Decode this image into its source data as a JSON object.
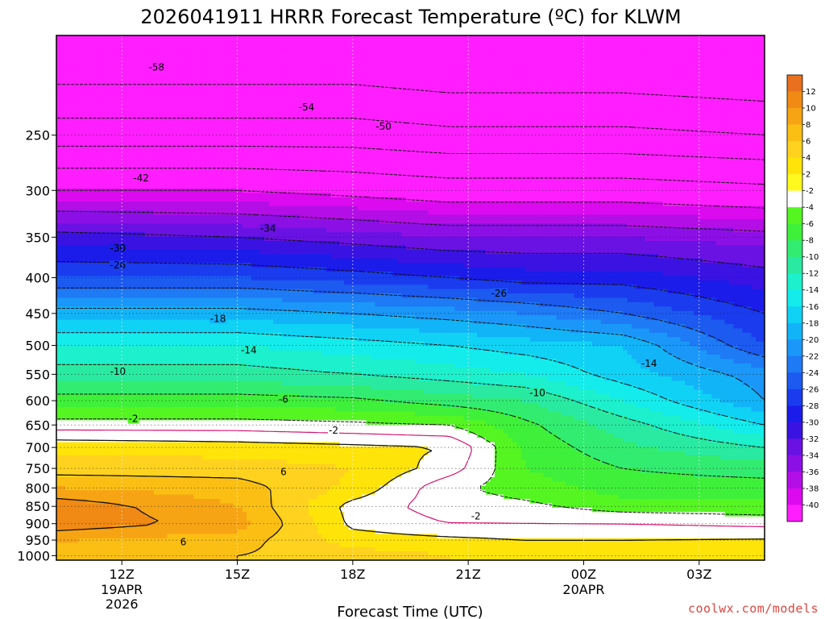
{
  "chart_data": {
    "type": "heatmap",
    "title": "2026041911 HRRR Forecast Temperature (ºC) for KLWM",
    "xlabel": "Forecast Time (UTC)",
    "ylabel": "",
    "units": "ºC",
    "y_axis": {
      "quantity": "pressure (hPa)",
      "reversed": true,
      "range": [
        1015,
        180
      ],
      "ticks": [
        250,
        300,
        350,
        400,
        450,
        500,
        550,
        600,
        650,
        700,
        750,
        800,
        850,
        900,
        950,
        1000
      ]
    },
    "x_axis": {
      "range_hours": [
        -1.7,
        16.7
      ],
      "ticks": [
        {
          "hour": 0,
          "label": "12Z",
          "sublabels": [
            "19APR",
            "2026"
          ]
        },
        {
          "hour": 3,
          "label": "15Z",
          "sublabels": []
        },
        {
          "hour": 6,
          "label": "18Z",
          "sublabels": []
        },
        {
          "hour": 9,
          "label": "21Z",
          "sublabels": []
        },
        {
          "hour": 12,
          "label": "00Z",
          "sublabels": [
            "20APR"
          ]
        },
        {
          "hour": 15,
          "label": "03Z",
          "sublabels": []
        }
      ]
    },
    "grid": true,
    "colorbar": {
      "position": "right",
      "labels": [
        "12",
        "10",
        "8",
        "6",
        "4",
        "2",
        "-2",
        "-4",
        "-6",
        "-8",
        "-10",
        "-12",
        "-14",
        "-16",
        "-18",
        "-20",
        "-22",
        "-24",
        "-26",
        "-28",
        "-30",
        "-32",
        "-34",
        "-36",
        "-38",
        "-40"
      ],
      "colors": [
        "#e8701e",
        "#f08a14",
        "#f7a414",
        "#fbbf14",
        "#fed21e",
        "#ffe40a",
        "#fff91e",
        "#ffffff",
        "#55f522",
        "#3ff03a",
        "#32ec71",
        "#29eaa0",
        "#1cf0cc",
        "#14ecec",
        "#10d2f5",
        "#12b4f8",
        "#1a97f8",
        "#1f7af5",
        "#1c5af0",
        "#1a3cee",
        "#1c1cea",
        "#3a13e3",
        "#6a12e3",
        "#8c10e6",
        "#b40ee6",
        "#dc0aef",
        "#ff1eff"
      ]
    },
    "profile_levels": [
      1000,
      950,
      900,
      850,
      800,
      750,
      700,
      650,
      600,
      550,
      500,
      450,
      400,
      350,
      300,
      250,
      200
    ],
    "profiles": [
      {
        "hour": -1.7,
        "temps": [
          7.5,
          8,
          11.5,
          11.5,
          8,
          5,
          3.5,
          -1,
          -5,
          -9,
          -12,
          -17,
          -24,
          -29,
          -38,
          -48,
          -56
        ]
      },
      {
        "hour": 3,
        "temps": [
          6,
          7,
          9,
          8,
          7,
          5,
          3,
          -1,
          -5,
          -9,
          -12,
          -17,
          -24,
          -30,
          -38,
          -48,
          -56
        ]
      },
      {
        "hour": 6,
        "temps": [
          5,
          3,
          1.5,
          1.2,
          3.5,
          4,
          2.5,
          -1.5,
          -5.5,
          -10,
          -13,
          -18,
          -25,
          -31,
          -39,
          -48,
          -56
        ]
      },
      {
        "hour": 8.5,
        "temps": [
          4,
          2.5,
          0,
          -1,
          -1.5,
          1,
          2,
          -2,
          -7,
          -11,
          -14,
          -19,
          -26,
          -32,
          -40,
          -49,
          -57
        ]
      },
      {
        "hour": 10.5,
        "temps": [
          3.5,
          2,
          0,
          -1.5,
          -3,
          -4,
          -4.5,
          -5.5,
          -8,
          -12,
          -15,
          -20,
          -27,
          -32,
          -40,
          -49,
          -57
        ]
      },
      {
        "hour": 13,
        "temps": [
          3.5,
          2,
          0,
          -3,
          -5,
          -6,
          -7.5,
          -9,
          -12,
          -15,
          -16,
          -22,
          -27,
          -32,
          -40,
          -49,
          -57
        ]
      },
      {
        "hour": 16.7,
        "temps": [
          3.8,
          2.2,
          -0.5,
          -3.5,
          -5,
          -7,
          -10,
          -14,
          -18,
          -19,
          -24,
          -26,
          -29,
          -33,
          -41,
          -50,
          -58
        ]
      }
    ],
    "contours": [
      {
        "value": -58,
        "label": "-58",
        "label_at": {
          "hour": 0.9,
          "p": 200
        }
      },
      {
        "value": -54,
        "label": "-54",
        "label_at": {
          "hour": 4.8,
          "p": 228
        }
      },
      {
        "value": -50,
        "label": "-50",
        "label_at": {
          "hour": 6.8,
          "p": 243
        }
      },
      {
        "value": -42,
        "label": "-42",
        "label_at": {
          "hour": 0.5,
          "p": 288
        }
      },
      {
        "value": -34,
        "label": "-34",
        "label_at": {
          "hour": 3.8,
          "p": 340
        }
      },
      {
        "value": -30,
        "label": "-30",
        "label_at": {
          "hour": -0.1,
          "p": 363
        }
      },
      {
        "value": -26,
        "label": "-26",
        "label_at": {
          "hour": -0.1,
          "p": 384
        }
      },
      {
        "value": -26,
        "label": "-26",
        "label_at": {
          "hour": 9.8,
          "p": 421
        }
      },
      {
        "value": -18,
        "label": "-18",
        "label_at": {
          "hour": 2.5,
          "p": 458
        }
      },
      {
        "value": -14,
        "label": "-14",
        "label_at": {
          "hour": 3.3,
          "p": 508
        }
      },
      {
        "value": -14,
        "label": "-14",
        "label_at": {
          "hour": 13.7,
          "p": 531
        }
      },
      {
        "value": -10,
        "label": "-10",
        "label_at": {
          "hour": -0.1,
          "p": 545
        }
      },
      {
        "value": -10,
        "label": "-10",
        "label_at": {
          "hour": 10.8,
          "p": 585
        }
      },
      {
        "value": -6,
        "label": "-6",
        "label_at": {
          "hour": 4.2,
          "p": 597
        }
      },
      {
        "value": -2,
        "label": "-2",
        "label_at": {
          "hour": 0.3,
          "p": 637
        }
      },
      {
        "value": -2,
        "label": "-2",
        "label_at": {
          "hour": 5.5,
          "p": 662
        }
      },
      {
        "value": -2,
        "label": "-2",
        "label_at": {
          "hour": 9.2,
          "p": 878
        }
      },
      {
        "value": 6,
        "label": "6",
        "label_at": {
          "hour": 4.2,
          "p": 759
        }
      },
      {
        "value": 6,
        "label": "6",
        "label_at": {
          "hour": 1.6,
          "p": 956
        }
      }
    ]
  },
  "footer": {
    "credit": "coolwx.com/models"
  },
  "colors": {
    "background": "#ffffff",
    "ground": "#a0522d",
    "freezing_line": "#d6136e"
  }
}
